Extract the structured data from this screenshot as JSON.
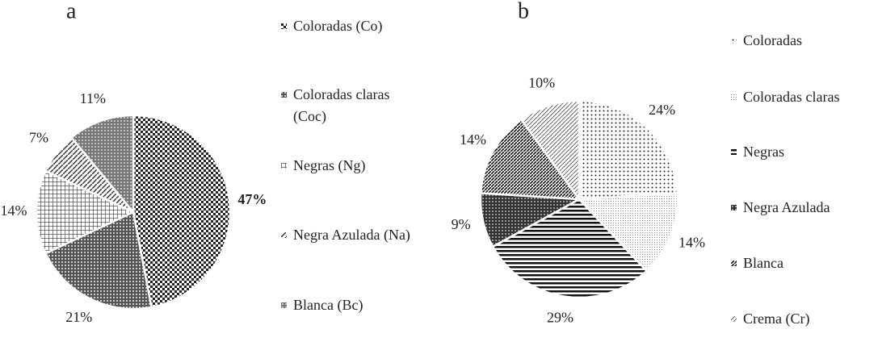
{
  "chart_data": [
    {
      "type": "pie",
      "title": "a",
      "categories": [
        "Coloradas (Co)",
        "Coloradas claras (Coc)",
        "Negras (Ng)",
        "Negra Azulada (Na)",
        "Blanca (Bc)"
      ],
      "values": [
        47,
        21,
        14,
        7,
        11
      ],
      "value_labels": [
        "47%",
        "21%",
        "14%",
        "7%",
        "11%"
      ]
    },
    {
      "type": "pie",
      "title": "b",
      "categories": [
        "Coloradas",
        "Coloradas claras",
        "Negras",
        "Negra Azulada",
        "Blanca",
        "Crema (Cr)"
      ],
      "values": [
        24,
        14,
        29,
        9,
        14,
        10
      ],
      "value_labels": [
        "24%",
        "14%",
        "29%",
        "9%",
        "14%",
        "10%"
      ]
    }
  ]
}
